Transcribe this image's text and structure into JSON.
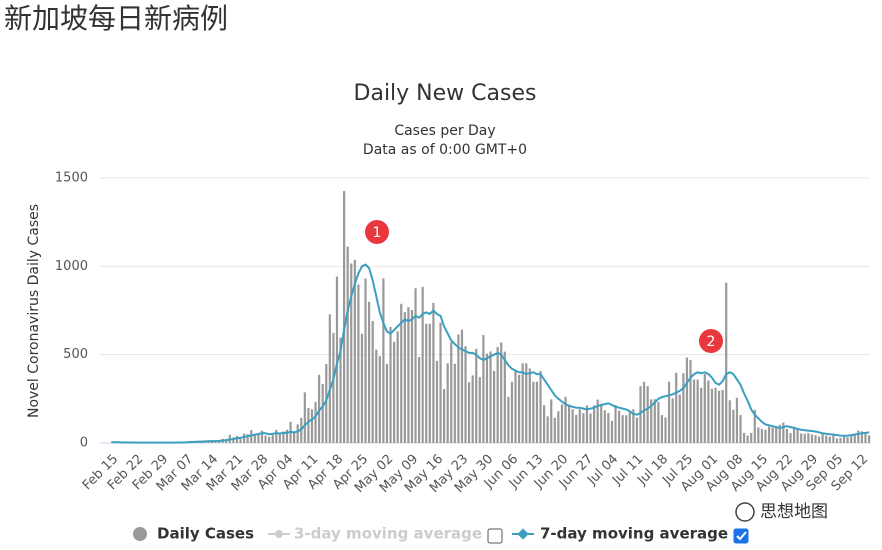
{
  "page_title": "新加坡每日新病例",
  "watermark": "思想地图",
  "chart_data": {
    "type": "bar",
    "title": "Daily New Cases",
    "subtitle": [
      "Cases per Day",
      "Data as of 0:00 GMT+0"
    ],
    "y_label": "Novel Coronavirus Daily Cases",
    "ylim": [
      0,
      1500
    ],
    "yticks": [
      0,
      500,
      1000,
      1500
    ],
    "grid": true,
    "annotations": [
      "1",
      "2"
    ],
    "categories": [
      "Feb 15",
      null,
      null,
      null,
      null,
      null,
      null,
      "Feb 22",
      null,
      null,
      null,
      null,
      null,
      null,
      "Feb 29",
      null,
      null,
      null,
      null,
      null,
      null,
      "Mar 07",
      null,
      null,
      null,
      null,
      null,
      null,
      "Mar 14",
      null,
      null,
      null,
      null,
      null,
      null,
      "Mar 21",
      null,
      null,
      null,
      null,
      null,
      null,
      "Mar 28",
      null,
      null,
      null,
      null,
      null,
      null,
      "Apr 04",
      null,
      null,
      null,
      null,
      null,
      null,
      "Apr 11",
      null,
      null,
      null,
      null,
      null,
      null,
      "Apr 18",
      null,
      null,
      null,
      null,
      null,
      null,
      "Apr 25",
      null,
      null,
      null,
      null,
      null,
      null,
      "May 02",
      null,
      null,
      null,
      null,
      null,
      null,
      "May 09",
      null,
      null,
      null,
      null,
      null,
      null,
      "May 16",
      null,
      null,
      null,
      null,
      null,
      null,
      "May 23",
      null,
      null,
      null,
      null,
      null,
      null,
      "May 30",
      null,
      null,
      null,
      null,
      null,
      null,
      "Jun 06",
      null,
      null,
      null,
      null,
      null,
      null,
      "Jun 13",
      null,
      null,
      null,
      null,
      null,
      null,
      "Jun 20",
      null,
      null,
      null,
      null,
      null,
      null,
      "Jun 27",
      null,
      null,
      null,
      null,
      null,
      null,
      "Jul 04",
      null,
      null,
      null,
      null,
      null,
      null,
      "Jul 11",
      null,
      null,
      null,
      null,
      null,
      null,
      "Jul 18",
      null,
      null,
      null,
      null,
      null,
      null,
      "Jul 25",
      null,
      null,
      null,
      null,
      null,
      null,
      "Aug 01",
      null,
      null,
      null,
      null,
      null,
      null,
      "Aug 08",
      null,
      null,
      null,
      null,
      null,
      null,
      "Aug 15",
      null,
      null,
      null,
      null,
      null,
      null,
      "Aug 22",
      null,
      null,
      null,
      null,
      null,
      null,
      "Aug 29",
      null,
      null,
      null,
      null,
      null,
      null,
      "Sep 05",
      null,
      null,
      null,
      null,
      null,
      null,
      "Sep 12",
      null,
      null
    ],
    "series": [
      {
        "name": "Daily Cases",
        "type": "bar",
        "color": "#999999",
        "visible": true,
        "values": [
          9,
          3,
          2,
          3,
          3,
          1,
          1,
          3,
          3,
          1,
          2,
          2,
          3,
          0,
          4,
          4,
          2,
          2,
          2,
          2,
          8,
          5,
          12,
          10,
          13,
          9,
          12,
          8,
          9,
          14,
          17,
          23,
          23,
          47,
          32,
          40,
          23,
          54,
          49,
          73,
          52,
          49,
          70,
          42,
          35,
          47,
          74,
          49,
          65,
          75,
          120,
          66,
          106,
          142,
          287,
          198,
          191,
          233,
          386,
          334,
          447,
          728,
          623,
          942,
          596,
          1426,
          1111,
          1016,
          1037,
          897,
          618,
          931,
          799,
          690,
          528,
          492,
          932,
          447,
          657,
          573,
          632,
          788,
          741,
          768,
          753,
          876,
          486,
          884,
          675,
          675,
          793,
          465,
          682,
          305,
          451,
          570,
          448,
          614,
          642,
          548,
          344,
          383,
          533,
          373,
          611,
          506,
          518,
          408,
          544,
          569,
          517,
          261,
          347,
          407,
          386,
          451,
          451,
          422,
          347,
          347,
          407,
          214,
          151,
          247,
          142,
          180,
          218,
          262,
          218,
          191,
          159,
          191,
          169,
          213,
          167,
          213,
          246,
          215,
          185,
          170,
          126,
          215,
          183,
          158,
          157,
          179,
          191,
          144,
          322,
          347,
          322,
          247,
          248,
          233,
          158,
          144,
          347,
          253,
          398,
          274,
          395,
          484,
          469,
          359,
          359,
          313,
          390,
          354,
          307,
          313,
          295,
          300,
          908,
          242,
          188,
          256,
          158,
          57,
          42,
          57,
          188,
          88,
          79,
          75,
          93,
          87,
          86,
          103,
          116,
          80,
          56,
          93,
          81,
          54,
          52,
          56,
          49,
          44,
          37,
          53,
          42,
          36,
          42,
          26,
          29,
          36,
          33,
          39,
          51,
          71,
          66,
          54,
          44
        ]
      },
      {
        "name": "3-day moving average",
        "type": "line",
        "color": "#cccccc",
        "visible": false
      },
      {
        "name": "7-day moving average",
        "type": "line",
        "color": "#3a9fc0",
        "visible": true,
        "values": [
          5,
          4,
          4,
          3,
          3,
          3,
          3,
          2,
          2,
          2,
          2,
          2,
          2,
          2,
          2,
          2,
          2,
          2,
          3,
          3,
          3,
          4,
          5,
          6,
          7,
          8,
          9,
          10,
          11,
          11,
          12,
          14,
          16,
          20,
          22,
          27,
          29,
          35,
          38,
          43,
          47,
          51,
          56,
          55,
          50,
          52,
          56,
          54,
          57,
          57,
          64,
          59,
          67,
          77,
          101,
          120,
          133,
          150,
          184,
          206,
          242,
          300,
          360,
          450,
          520,
          640,
          750,
          830,
          900,
          960,
          1000,
          1010,
          990,
          920,
          830,
          740,
          680,
          630,
          620,
          640,
          660,
          680,
          700,
          690,
          700,
          720,
          710,
          730,
          740,
          730,
          750,
          730,
          720,
          660,
          620,
          580,
          560,
          540,
          530,
          520,
          510,
          510,
          500,
          480,
          470,
          480,
          490,
          500,
          510,
          500,
          470,
          440,
          420,
          410,
          400,
          400,
          390,
          395,
          400,
          390,
          390,
          360,
          330,
          300,
          270,
          250,
          235,
          220,
          210,
          205,
          200,
          200,
          195,
          190,
          195,
          200,
          210,
          215,
          220,
          225,
          215,
          205,
          200,
          195,
          190,
          180,
          165,
          160,
          170,
          185,
          195,
          210,
          230,
          250,
          260,
          265,
          270,
          275,
          285,
          295,
          310,
          340,
          370,
          390,
          400,
          395,
          400,
          390,
          370,
          340,
          330,
          350,
          390,
          400,
          390,
          360,
          330,
          280,
          240,
          190,
          160,
          140,
          120,
          105,
          100,
          95,
          90,
          85,
          90,
          95,
          90,
          85,
          80,
          75,
          72,
          70,
          68,
          65,
          60,
          55,
          52,
          50,
          48,
          45,
          42,
          40,
          42,
          45,
          48,
          52,
          55,
          57,
          60
        ]
      }
    ]
  }
}
